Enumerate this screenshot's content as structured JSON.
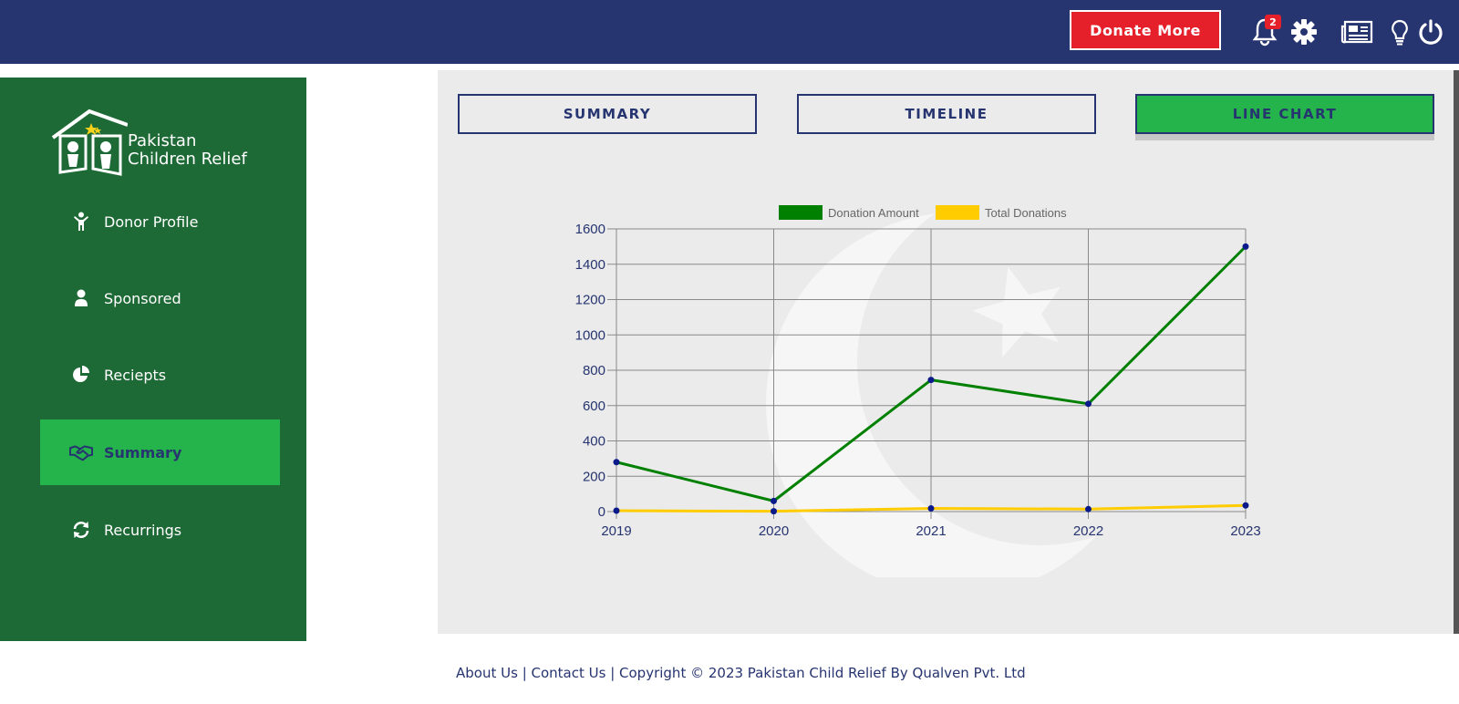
{
  "header": {
    "donate_label": "Donate More",
    "notification_count": "2",
    "icons": [
      "bell-icon",
      "gear-icon",
      "newspaper-icon",
      "lightbulb-icon",
      "power-icon"
    ]
  },
  "sidebar": {
    "logo_line1": "Pakistan",
    "logo_line2": "Children Relief",
    "items": [
      {
        "label": "Donor Profile",
        "icon": "child-icon"
      },
      {
        "label": "Sponsored",
        "icon": "user-icon"
      },
      {
        "label": "Reciepts",
        "icon": "pie-chart-icon"
      },
      {
        "label": "Summary",
        "icon": "handshake-icon",
        "active": true
      },
      {
        "label": "Recurrings",
        "icon": "refresh-icon"
      }
    ]
  },
  "tabs": [
    {
      "label": "SUMMARY"
    },
    {
      "label": "TIMELINE"
    },
    {
      "label": "LINE CHART",
      "active": true
    }
  ],
  "chart_data": {
    "type": "line",
    "x": [
      "2019",
      "2020",
      "2021",
      "2022",
      "2023"
    ],
    "series": [
      {
        "name": "Donation Amount",
        "color": "#008000",
        "values": [
          280,
          60,
          745,
          610,
          1500
        ]
      },
      {
        "name": "Total Donations",
        "color": "#ffcc00",
        "values": [
          5,
          2,
          18,
          14,
          35
        ]
      }
    ],
    "ylim": [
      0,
      1600
    ],
    "yticks": [
      "0",
      "200",
      "400",
      "600",
      "800",
      "1000",
      "1200",
      "1400",
      "1600"
    ],
    "grid": true,
    "legend": "top"
  },
  "footer": {
    "about": "About Us",
    "sep1": " | ",
    "contact": "Contact Us",
    "sep2": " | ",
    "copyright": "Copyright © 2023 Pakistan Child Relief By Qualven Pvt. Ltd"
  },
  "colors": {
    "navy": "#263470",
    "sidebar_green": "#1e6a36",
    "active_green": "#25b34b",
    "donate_red": "#e5202a"
  }
}
